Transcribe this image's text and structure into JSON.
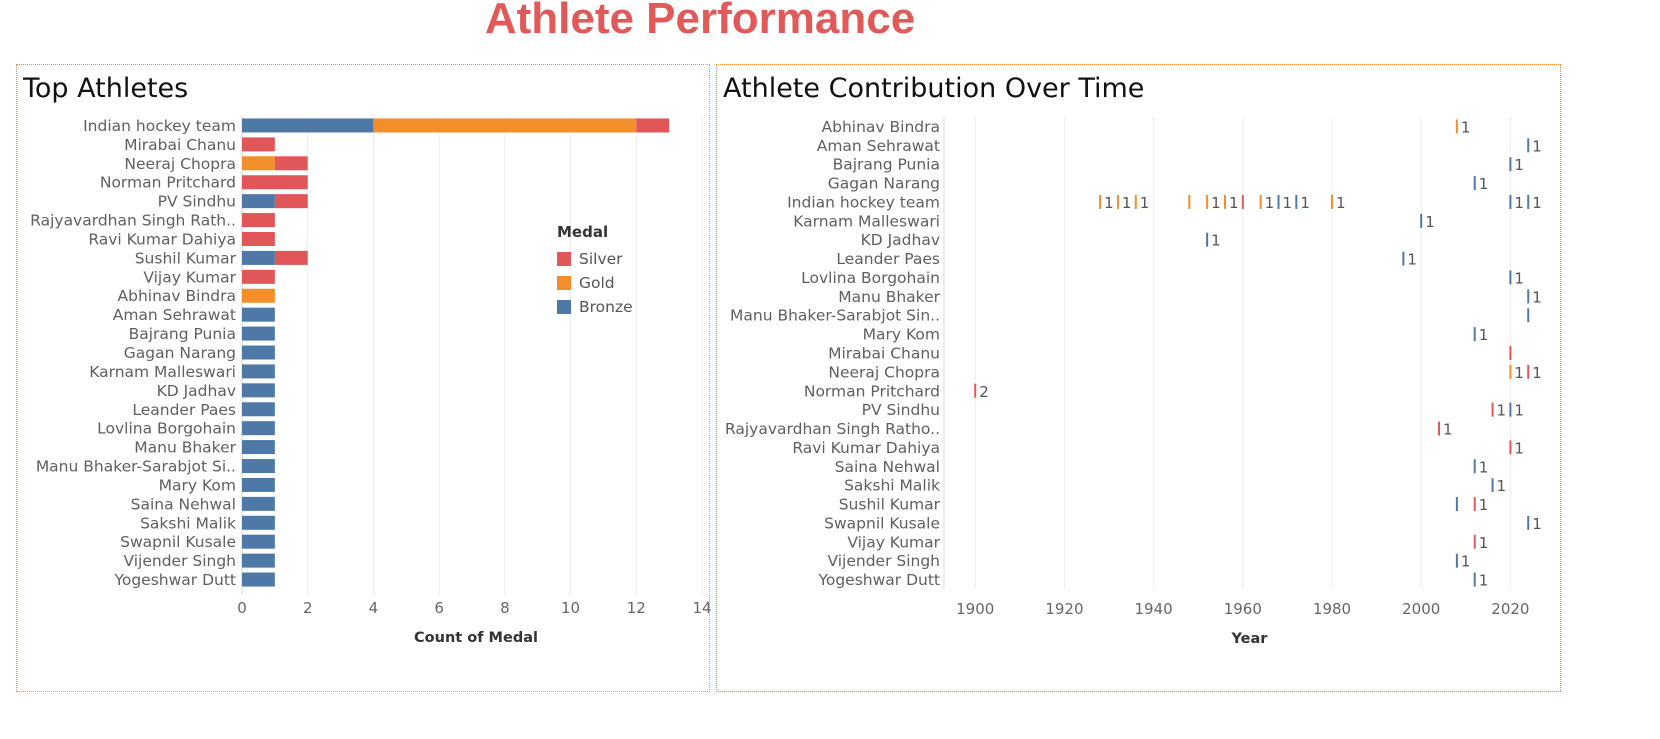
{
  "dashboard": {
    "title": "Athlete Performance"
  },
  "colors": {
    "Bronze": "#4e79a7",
    "Gold": "#f28e2b",
    "Silver": "#e15759",
    "title": "#e05a5a",
    "frame": "#f28e2b"
  },
  "legend": {
    "title": "Medal",
    "items": [
      "Silver",
      "Gold",
      "Bronze"
    ]
  },
  "chart_data": [
    {
      "id": "top-athletes",
      "type": "bar",
      "orientation": "horizontal",
      "stacked": true,
      "title": "Top Athletes",
      "xlabel": "Count of Medal",
      "ylabel": "",
      "xlim": [
        0,
        14
      ],
      "xticks": [
        0,
        2,
        4,
        6,
        8,
        10,
        12,
        14
      ],
      "grid": true,
      "legend_position": "right",
      "categories": [
        "Indian hockey team",
        "Mirabai Chanu",
        "Neeraj Chopra",
        "Norman Pritchard",
        "PV Sindhu",
        "Rajyavardhan Singh Rath..",
        "Ravi Kumar Dahiya",
        "Sushil Kumar",
        "Vijay Kumar",
        "Abhinav Bindra",
        "Aman Sehrawat",
        "Bajrang Punia",
        "Gagan Narang",
        "Karnam Malleswari",
        "KD Jadhav",
        "Leander Paes",
        "Lovlina Borgohain",
        "Manu Bhaker",
        "Manu Bhaker-Sarabjot Si..",
        "Mary Kom",
        "Saina Nehwal",
        "Sakshi Malik",
        "Swapnil Kusale",
        "Vijender Singh",
        "Yogeshwar Dutt"
      ],
      "series": [
        {
          "name": "Bronze",
          "values": [
            4,
            0,
            0,
            0,
            1,
            0,
            0,
            1,
            0,
            0,
            1,
            1,
            1,
            1,
            1,
            1,
            1,
            1,
            1,
            1,
            1,
            1,
            1,
            1,
            1
          ]
        },
        {
          "name": "Gold",
          "values": [
            8,
            0,
            1,
            0,
            0,
            0,
            0,
            0,
            0,
            1,
            0,
            0,
            0,
            0,
            0,
            0,
            0,
            0,
            0,
            0,
            0,
            0,
            0,
            0,
            0
          ]
        },
        {
          "name": "Silver",
          "values": [
            1,
            1,
            1,
            2,
            1,
            1,
            1,
            1,
            1,
            0,
            0,
            0,
            0,
            0,
            0,
            0,
            0,
            0,
            0,
            0,
            0,
            0,
            0,
            0,
            0
          ]
        }
      ]
    },
    {
      "id": "athlete-contribution",
      "type": "scatter",
      "title": "Athlete Contribution Over Time",
      "xlabel": "Year",
      "ylabel": "",
      "xlim": [
        1893,
        2030
      ],
      "xticks": [
        1900,
        1920,
        1940,
        1960,
        1980,
        2000,
        2020
      ],
      "grid": true,
      "categories": [
        "Abhinav Bindra",
        "Aman Sehrawat",
        "Bajrang Punia",
        "Gagan Narang",
        "Indian hockey team",
        "Karnam Malleswari",
        "KD Jadhav",
        "Leander Paes",
        "Lovlina Borgohain",
        "Manu Bhaker",
        "Manu Bhaker-Sarabjot Sin..",
        "Mary Kom",
        "Mirabai Chanu",
        "Neeraj Chopra",
        "Norman Pritchard",
        "PV Sindhu",
        "Rajyavardhan Singh Ratho..",
        "Ravi Kumar Dahiya",
        "Saina Nehwal",
        "Sakshi Malik",
        "Sushil Kumar",
        "Swapnil Kusale",
        "Vijay Kumar",
        "Vijender Singh",
        "Yogeshwar Dutt"
      ],
      "points": [
        {
          "athlete": "Abhinav Bindra",
          "year": 2008,
          "medal": "Gold",
          "count": 1,
          "label": "1"
        },
        {
          "athlete": "Aman Sehrawat",
          "year": 2024,
          "medal": "Bronze",
          "count": 1,
          "label": "1"
        },
        {
          "athlete": "Bajrang Punia",
          "year": 2020,
          "medal": "Bronze",
          "count": 1,
          "label": "1"
        },
        {
          "athlete": "Gagan Narang",
          "year": 2012,
          "medal": "Bronze",
          "count": 1,
          "label": "1"
        },
        {
          "athlete": "Indian hockey team",
          "year": 1928,
          "medal": "Gold",
          "count": 1,
          "label": "1"
        },
        {
          "athlete": "Indian hockey team",
          "year": 1932,
          "medal": "Gold",
          "count": 1,
          "label": "1"
        },
        {
          "athlete": "Indian hockey team",
          "year": 1936,
          "medal": "Gold",
          "count": 1,
          "label": "1"
        },
        {
          "athlete": "Indian hockey team",
          "year": 1948,
          "medal": "Gold",
          "count": 1,
          "label": ""
        },
        {
          "athlete": "Indian hockey team",
          "year": 1952,
          "medal": "Gold",
          "count": 1,
          "label": "1"
        },
        {
          "athlete": "Indian hockey team",
          "year": 1956,
          "medal": "Gold",
          "count": 1,
          "label": "1"
        },
        {
          "athlete": "Indian hockey team",
          "year": 1960,
          "medal": "Silver",
          "count": 1,
          "label": ""
        },
        {
          "athlete": "Indian hockey team",
          "year": 1964,
          "medal": "Gold",
          "count": 1,
          "label": "1"
        },
        {
          "athlete": "Indian hockey team",
          "year": 1968,
          "medal": "Bronze",
          "count": 1,
          "label": "1"
        },
        {
          "athlete": "Indian hockey team",
          "year": 1972,
          "medal": "Bronze",
          "count": 1,
          "label": "1"
        },
        {
          "athlete": "Indian hockey team",
          "year": 1980,
          "medal": "Gold",
          "count": 1,
          "label": "1"
        },
        {
          "athlete": "Indian hockey team",
          "year": 2020,
          "medal": "Bronze",
          "count": 1,
          "label": "1"
        },
        {
          "athlete": "Indian hockey team",
          "year": 2024,
          "medal": "Bronze",
          "count": 1,
          "label": "1"
        },
        {
          "athlete": "Karnam Malleswari",
          "year": 2000,
          "medal": "Bronze",
          "count": 1,
          "label": "1"
        },
        {
          "athlete": "KD Jadhav",
          "year": 1952,
          "medal": "Bronze",
          "count": 1,
          "label": "1"
        },
        {
          "athlete": "Leander Paes",
          "year": 1996,
          "medal": "Bronze",
          "count": 1,
          "label": "1"
        },
        {
          "athlete": "Lovlina Borgohain",
          "year": 2020,
          "medal": "Bronze",
          "count": 1,
          "label": "1"
        },
        {
          "athlete": "Manu Bhaker",
          "year": 2024,
          "medal": "Bronze",
          "count": 1,
          "label": "1"
        },
        {
          "athlete": "Manu Bhaker-Sarabjot Sin..",
          "year": 2024,
          "medal": "Bronze",
          "count": 1,
          "label": ""
        },
        {
          "athlete": "Mary Kom",
          "year": 2012,
          "medal": "Bronze",
          "count": 1,
          "label": "1"
        },
        {
          "athlete": "Mirabai Chanu",
          "year": 2020,
          "medal": "Silver",
          "count": 1,
          "label": ""
        },
        {
          "athlete": "Neeraj Chopra",
          "year": 2020,
          "medal": "Gold",
          "count": 1,
          "label": "1"
        },
        {
          "athlete": "Neeraj Chopra",
          "year": 2024,
          "medal": "Silver",
          "count": 1,
          "label": "1"
        },
        {
          "athlete": "Norman Pritchard",
          "year": 1900,
          "medal": "Silver",
          "count": 2,
          "label": "2"
        },
        {
          "athlete": "PV Sindhu",
          "year": 2016,
          "medal": "Silver",
          "count": 1,
          "label": "1"
        },
        {
          "athlete": "PV Sindhu",
          "year": 2020,
          "medal": "Bronze",
          "count": 1,
          "label": "1"
        },
        {
          "athlete": "Rajyavardhan Singh Ratho..",
          "year": 2004,
          "medal": "Silver",
          "count": 1,
          "label": "1"
        },
        {
          "athlete": "Ravi Kumar Dahiya",
          "year": 2020,
          "medal": "Silver",
          "count": 1,
          "label": "1"
        },
        {
          "athlete": "Saina Nehwal",
          "year": 2012,
          "medal": "Bronze",
          "count": 1,
          "label": "1"
        },
        {
          "athlete": "Sakshi Malik",
          "year": 2016,
          "medal": "Bronze",
          "count": 1,
          "label": "1"
        },
        {
          "athlete": "Sushil Kumar",
          "year": 2008,
          "medal": "Bronze",
          "count": 1,
          "label": ""
        },
        {
          "athlete": "Sushil Kumar",
          "year": 2012,
          "medal": "Silver",
          "count": 1,
          "label": "1"
        },
        {
          "athlete": "Swapnil Kusale",
          "year": 2024,
          "medal": "Bronze",
          "count": 1,
          "label": "1"
        },
        {
          "athlete": "Vijay Kumar",
          "year": 2012,
          "medal": "Silver",
          "count": 1,
          "label": "1"
        },
        {
          "athlete": "Vijender Singh",
          "year": 2008,
          "medal": "Bronze",
          "count": 1,
          "label": "1"
        },
        {
          "athlete": "Yogeshwar Dutt",
          "year": 2012,
          "medal": "Bronze",
          "count": 1,
          "label": "1"
        }
      ]
    }
  ]
}
